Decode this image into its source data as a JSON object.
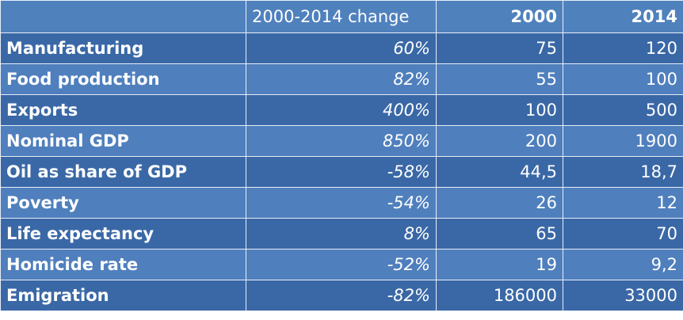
{
  "table": {
    "columns": [
      "2000-2014 change",
      "2000",
      "2014"
    ],
    "rows": [
      [
        "Manufacturing",
        "60%",
        "75",
        "120"
      ],
      [
        "Food production",
        "82%",
        "55",
        "100"
      ],
      [
        "Exports",
        "400%",
        "100",
        "500"
      ],
      [
        "Nominal GDP",
        "850%",
        "200",
        "1900"
      ],
      [
        "Oil as share of GDP",
        "-58%",
        "44,5",
        "18,7"
      ],
      [
        "Poverty",
        "-54%",
        "26",
        "12"
      ],
      [
        "Life expectancy",
        "8%",
        "65",
        "70"
      ],
      [
        "Homicide rate",
        "-52%",
        "19",
        "9,2"
      ],
      [
        "Emigration",
        "-82%",
        "186000",
        "33000"
      ]
    ]
  }
}
